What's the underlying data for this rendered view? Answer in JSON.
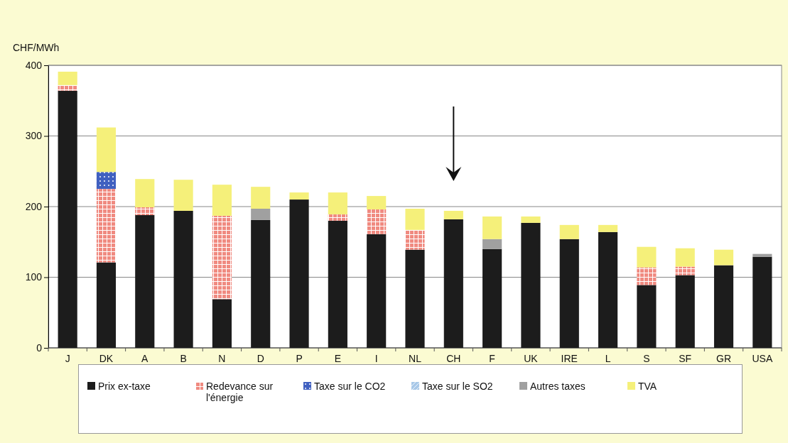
{
  "chart_data": {
    "type": "bar",
    "stacked": true,
    "ylabel": "CHF/MWh",
    "categories": [
      "J",
      "DK",
      "A",
      "B",
      "N",
      "D",
      "P",
      "E",
      "I",
      "NL",
      "CH",
      "F",
      "UK",
      "IRE",
      "L",
      "S",
      "SF",
      "GR",
      "USA"
    ],
    "series": [
      {
        "name": "Prix ex-taxe",
        "color": "#1c1c1c",
        "values": [
          364,
          121,
          188,
          194,
          69,
          181,
          210,
          180,
          161,
          139,
          182,
          140,
          177,
          154,
          164,
          89,
          103,
          117,
          129
        ]
      },
      {
        "name": "Redevance sur l'énergie",
        "color": "#f08a80",
        "values": [
          8,
          104,
          11,
          0,
          118,
          0,
          0,
          9,
          35,
          28,
          0,
          0,
          0,
          0,
          0,
          25,
          12,
          0,
          0
        ]
      },
      {
        "name": "Taxe sur le CO2",
        "color": "#4060c0",
        "values": [
          0,
          24,
          0,
          0,
          0,
          0,
          0,
          0,
          0,
          0,
          0,
          0,
          0,
          0,
          0,
          0,
          0,
          0,
          0
        ]
      },
      {
        "name": "Taxe sur le SO2",
        "color": "#a8c8e8",
        "values": [
          0,
          0,
          0,
          0,
          0,
          0,
          0,
          0,
          0,
          0,
          0,
          0,
          0,
          0,
          0,
          0,
          0,
          0,
          0
        ]
      },
      {
        "name": "Autres taxes",
        "color": "#a0a0a0",
        "values": [
          0,
          0,
          0,
          0,
          0,
          16,
          0,
          0,
          0,
          0,
          0,
          14,
          0,
          0,
          0,
          0,
          0,
          0,
          4
        ]
      },
      {
        "name": "TVA",
        "color": "#f5f07a",
        "values": [
          19,
          63,
          40,
          44,
          44,
          31,
          10,
          31,
          19,
          30,
          12,
          32,
          9,
          20,
          10,
          29,
          26,
          22,
          0
        ]
      }
    ],
    "ylim": [
      0,
      400
    ],
    "yticks": [
      0,
      100,
      200,
      300,
      400
    ],
    "grid": "y",
    "legend": "bottom"
  }
}
